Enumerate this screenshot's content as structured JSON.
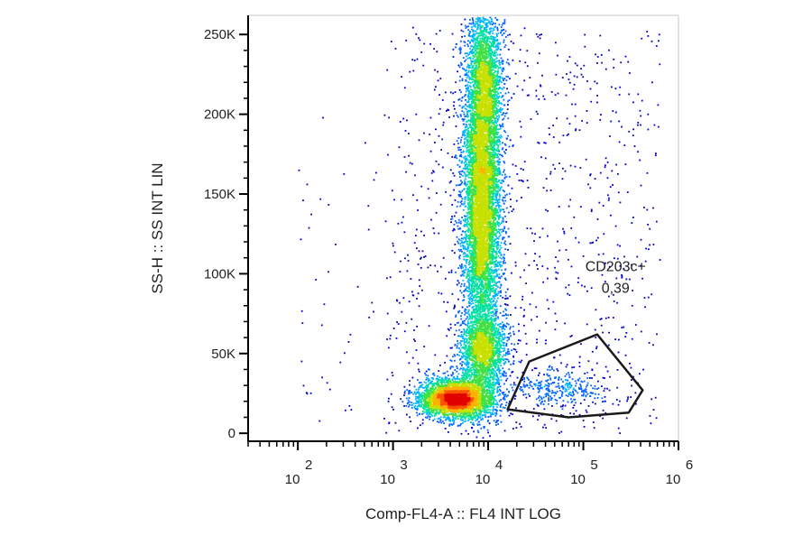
{
  "chart_data": {
    "type": "scatter",
    "plot_style": "density dot plot",
    "xlabel": "Comp-FL4-A :: FL4 INT LOG",
    "ylabel": "SS-H :: SS INT LIN",
    "x_scale": "log",
    "y_scale": "linear",
    "xlim": [
      30,
      1000000
    ],
    "ylim": [
      -5000,
      262000
    ],
    "x_ticks": [
      {
        "value": 100,
        "base": "10",
        "exp": "2"
      },
      {
        "value": 1000,
        "base": "10",
        "exp": "3"
      },
      {
        "value": 10000,
        "base": "10",
        "exp": "4"
      },
      {
        "value": 100000,
        "base": "10",
        "exp": "5"
      },
      {
        "value": 1000000,
        "base": "10",
        "exp": "6"
      }
    ],
    "y_ticks": [
      {
        "value": 0,
        "label": "0"
      },
      {
        "value": 50000,
        "label": "50K"
      },
      {
        "value": 100000,
        "label": "100K"
      },
      {
        "value": 150000,
        "label": "150K"
      },
      {
        "value": 200000,
        "label": "200K"
      },
      {
        "value": 250000,
        "label": "250K"
      }
    ],
    "colormap": [
      "#0000c8",
      "#0060ff",
      "#00b4ff",
      "#00e0a0",
      "#40e040",
      "#c8e000",
      "#ffb000",
      "#ff5000",
      "#e00000"
    ],
    "populations": [
      {
        "x_center": 4500,
        "y_center": 22000,
        "x_spread_decades": 0.2,
        "y_spread": 6000,
        "weight": 0.22
      },
      {
        "x_center": 8500,
        "y_center": 150000,
        "x_spread_decades": 0.1,
        "y_spread": 55000,
        "weight": 0.48
      },
      {
        "x_center": 8500,
        "y_center": 52000,
        "x_spread_decades": 0.13,
        "y_spread": 12000,
        "weight": 0.1
      },
      {
        "x_center": 9000,
        "y_center": 225000,
        "x_spread_decades": 0.09,
        "y_spread": 20000,
        "weight": 0.08
      },
      {
        "x_center": 60000,
        "y_center": 28000,
        "x_spread_decades": 0.25,
        "y_spread": 6000,
        "weight": 0.02
      }
    ],
    "gates": [
      {
        "name": "CD203c+",
        "value": "0,39",
        "polygon": [
          [
            16000,
            15000
          ],
          [
            27000,
            45000
          ],
          [
            140000,
            62000
          ],
          [
            420000,
            27000
          ],
          [
            300000,
            13000
          ],
          [
            70000,
            10000
          ]
        ]
      }
    ]
  }
}
